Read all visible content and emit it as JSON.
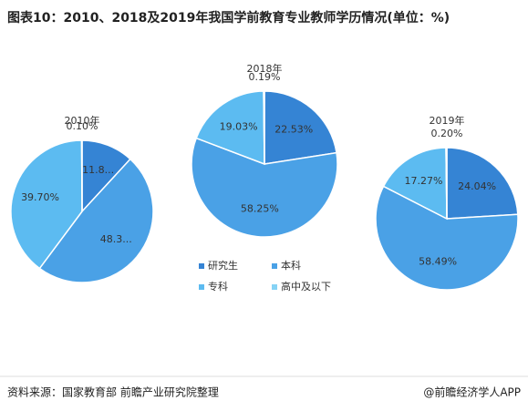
{
  "title": "图表10：2010、2018及2019年我国学前教育专业教师学历情况(单位：%)",
  "legend": {
    "categories": [
      "研究生",
      "本科",
      "专科",
      "高中及以下"
    ],
    "colors": [
      "#3584d4",
      "#4aa1e6",
      "#5cbbf1",
      "#86d3f5"
    ]
  },
  "source": "资料来源：国家教育部 前瞻产业研究院整理",
  "credit": "@前瞻经济学人APP",
  "chart_data": [
    {
      "type": "pie",
      "title": "2010年",
      "values": [
        11.84,
        48.36,
        39.7,
        0.1
      ],
      "value_labels": [
        "11.8...",
        "48.3...",
        "39.70%",
        "0.10%"
      ]
    },
    {
      "type": "pie",
      "title": "2018年",
      "values": [
        22.53,
        58.25,
        19.03,
        0.19
      ],
      "value_labels": [
        "22.53%",
        "58.25%",
        "19.03%",
        "0.19%"
      ]
    },
    {
      "type": "pie",
      "title": "2019年",
      "values": [
        24.04,
        58.49,
        17.27,
        0.2
      ],
      "value_labels": [
        "24.04%",
        "58.49%",
        "17.27%",
        "0.20%"
      ]
    }
  ]
}
